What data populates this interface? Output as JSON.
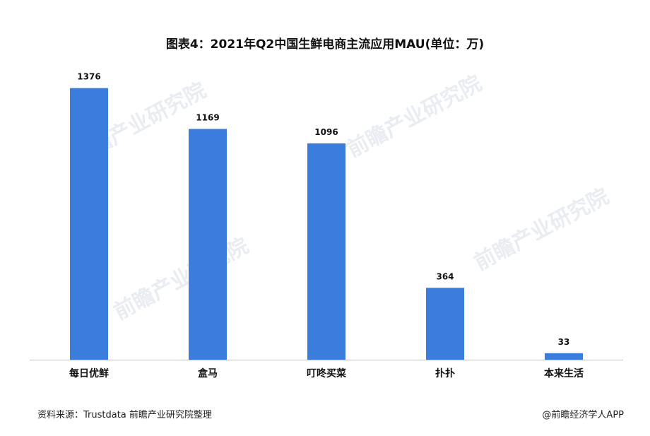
{
  "chart_data": {
    "type": "bar",
    "title": "图表4：2021年Q2中国生鲜电商主流应用MAU(单位：万)",
    "categories": [
      "每日优鲜",
      "盒马",
      "叮咚买菜",
      "扑扑",
      "本来生活"
    ],
    "values": [
      1376,
      1169,
      1096,
      364,
      33
    ],
    "bar_color": "#3b7ddd",
    "xlabel": "",
    "ylabel": "",
    "ylim": [
      0,
      1500
    ],
    "grid": false,
    "legend": "none"
  },
  "footer": {
    "source": "资料来源：Trustdata 前瞻产业研究院整理",
    "credit": "@前瞻经济学人APP"
  },
  "watermark": "前瞻产业研究院"
}
